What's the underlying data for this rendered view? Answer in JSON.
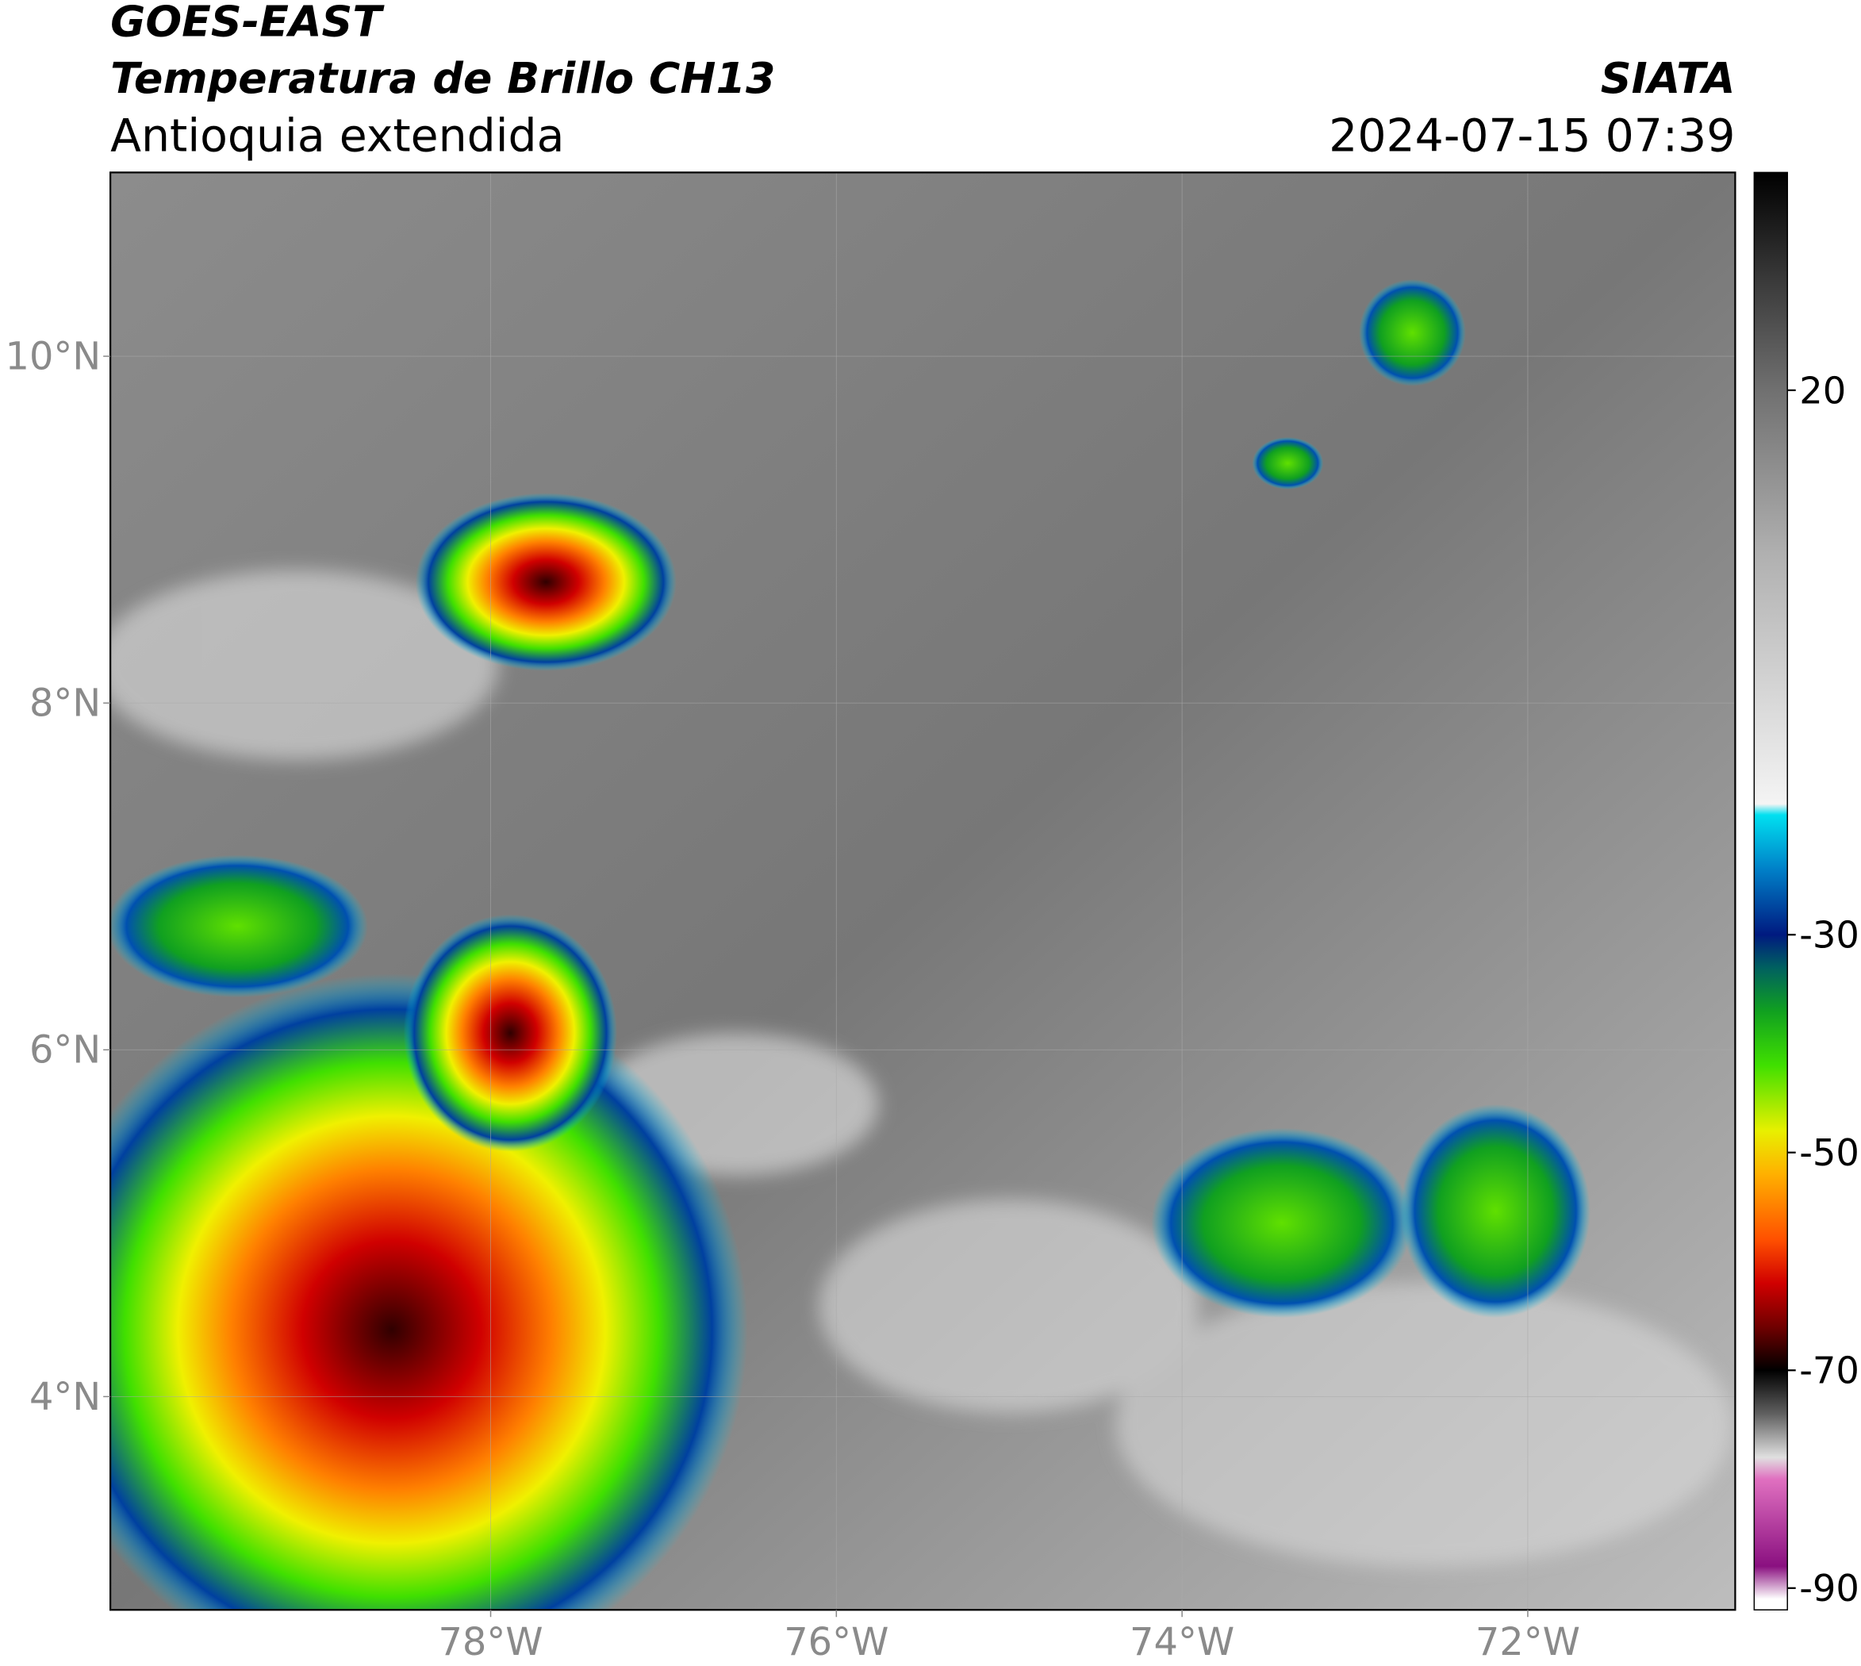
{
  "header": {
    "title": "GOES-EAST",
    "subtitle": "Temperatura de Brillo CH13",
    "region": "Antioquia extendida",
    "source": "SIATA",
    "datetime": "2024-07-15 07:39"
  },
  "map": {
    "xlim": [
      -80.2,
      -70.8
    ],
    "ylim": [
      2.77,
      11.06
    ],
    "xticks": [
      {
        "value": -78,
        "label": "78°W"
      },
      {
        "value": -76,
        "label": "76°W"
      },
      {
        "value": -74,
        "label": "74°W"
      },
      {
        "value": -72,
        "label": "72°W"
      }
    ],
    "yticks": [
      {
        "value": 10,
        "label": "10°N"
      },
      {
        "value": 8,
        "label": "8°N"
      },
      {
        "value": 6,
        "label": "6°N"
      },
      {
        "value": 4,
        "label": "4°N"
      }
    ],
    "grid": true
  },
  "colorbar": {
    "lim": [
      -92,
      40
    ],
    "ticks": [
      20,
      -30,
      -50,
      -70,
      -90
    ],
    "colormap": [
      {
        "value": 40,
        "color": "#000000"
      },
      {
        "value": 30,
        "color": "#3a3a3a"
      },
      {
        "value": 20,
        "color": "#707070"
      },
      {
        "value": 5,
        "color": "#b0b0b0"
      },
      {
        "value": -18,
        "color": "#f4f4f4"
      },
      {
        "value": -19,
        "color": "#00e0f0"
      },
      {
        "value": -24,
        "color": "#0080c8"
      },
      {
        "value": -30,
        "color": "#001a80"
      },
      {
        "value": -33,
        "color": "#006060"
      },
      {
        "value": -37,
        "color": "#10a020"
      },
      {
        "value": -42,
        "color": "#40e000"
      },
      {
        "value": -48,
        "color": "#e8f000"
      },
      {
        "value": -52,
        "color": "#ffb000"
      },
      {
        "value": -58,
        "color": "#ff5000"
      },
      {
        "value": -62,
        "color": "#d00000"
      },
      {
        "value": -66,
        "color": "#700000"
      },
      {
        "value": -70,
        "color": "#000000"
      },
      {
        "value": -74,
        "color": "#606060"
      },
      {
        "value": -78,
        "color": "#e0e0e0"
      },
      {
        "value": -80,
        "color": "#e070c0"
      },
      {
        "value": -88,
        "color": "#8a1080"
      },
      {
        "value": -91,
        "color": "#ffffff"
      }
    ]
  }
}
